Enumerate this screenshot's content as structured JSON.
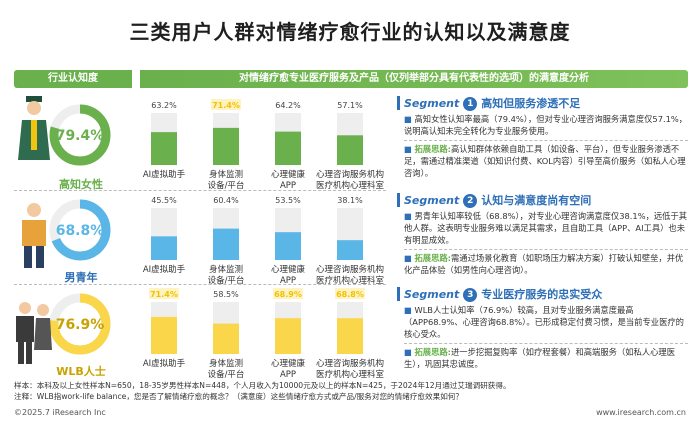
{
  "title": "三类用户人群对情绪疗愈行业的认知以及满意度",
  "header_left": "行业认知度",
  "header_right": "对情绪疗愈专业医疗服务及产品（仅列举部分具有代表性的选项）的满意度分析",
  "colors": {
    "green": "#6ab04c",
    "blue": "#5ab6e6",
    "yellow": "#f9d64a",
    "highlight_yellow": "#f2c200",
    "track": "#eeeeee",
    "segment_blue": "#2e6fb7"
  },
  "chart_data": {
    "type": "bar",
    "awareness": {
      "type": "donut",
      "groups": [
        {
          "name": "高知女性",
          "value": 79.4,
          "label": "79.4%"
        },
        {
          "name": "男青年",
          "value": 68.8,
          "label": "68.8%"
        },
        {
          "name": "WLB人士",
          "value": 76.9,
          "label": "76.9%"
        }
      ]
    },
    "satisfaction": {
      "categories": [
        "AI虚拟助手",
        "身体监测设备/平台",
        "心理健康APP",
        "心理咨询服务机构医疗机构心理科室"
      ],
      "category_lines": [
        [
          "AI虚拟助手"
        ],
        [
          "身体监测",
          "设备/平台"
        ],
        [
          "心理健康",
          "APP"
        ],
        [
          "心理咨询服务机构",
          "医疗机构心理科室"
        ]
      ],
      "ylim": [
        0,
        100
      ],
      "series": [
        {
          "name": "高知女性",
          "values": [
            63.2,
            71.4,
            64.2,
            57.1
          ],
          "labels": [
            "63.2%",
            "71.4%",
            "64.2%",
            "57.1%"
          ],
          "highlight": 1
        },
        {
          "name": "男青年",
          "values": [
            45.5,
            60.4,
            53.5,
            38.1
          ],
          "labels": [
            "45.5%",
            "60.4%",
            "53.5%",
            "38.1%"
          ],
          "highlight": null
        },
        {
          "name": "WLB人士",
          "values": [
            71.4,
            58.5,
            68.9,
            68.8
          ],
          "labels": [
            "71.4%",
            "58.5%",
            "68.9%",
            "68.8%"
          ],
          "highlight": [
            0,
            2,
            3
          ]
        }
      ]
    }
  },
  "segments": [
    {
      "word": "Segment",
      "num": "1",
      "heading": "高知但服务渗透不足",
      "body": "高知女性认知率最高（79.4%），但对专业心理咨询服务满意度仅57.1%，说明高认知未完全转化为专业服务使用。",
      "lead": "拓展思路:",
      "idea": "高认知群体依赖自助工具（如设备、平台），但专业服务渗透不足，需通过精准渠道（如知识付费、KOL内容）引导至高价服务（如私人心理咨询）。"
    },
    {
      "word": "Segment",
      "num": "2",
      "heading": "认知与满意度尚有空间",
      "body": "男青年认知率较低（68.8%），对专业心理咨询满意度仅38.1%，远低于其他人群。这表明专业服务难以满足其需求，且自助工具（APP、AI工具）也未有明显成效。",
      "lead": "拓展思路:",
      "idea": "需通过场景化教育（如职场压力解决方案）打破认知壁垒，并优化产品体验（如男性向心理咨询）。"
    },
    {
      "word": "Segment",
      "num": "3",
      "heading": "专业医疗服务的忠实受众",
      "body": "WLB人士认知率（76.9%）较高，且对专业服务满意度最高（APP68.9%、心理咨询68.8%）。已形成稳定付费习惯，是当前专业医疗的核心受众。",
      "lead": "拓展思路:",
      "idea": "进一步挖掘复购率（如疗程套餐）和高端服务（如私人心理医生），巩固其忠诚度。"
    }
  ],
  "footer": {
    "note1": "样本：本科及以上女性样本N=650，18-35岁男性样本N=448，个人月收入为10000元及以上的样本N=425，于2024年12月通过艾瑞调研获得。",
    "note2": "注释：WLB指work-life balance，您是否了解情绪疗愈的概念？（满意度）这些情绪疗愈方式或产品/服务对您的情绪疗愈效果如何？",
    "copyright": "©2025.7 iResearch Inc",
    "website": "www.iresearch.com.cn"
  }
}
